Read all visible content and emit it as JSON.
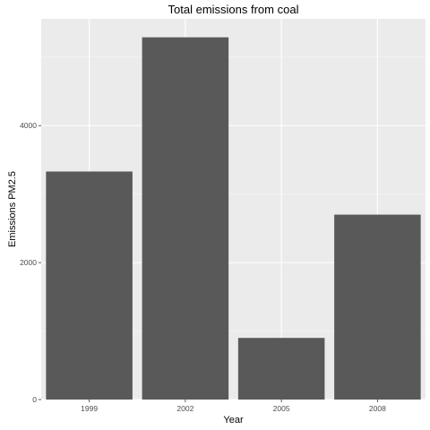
{
  "chart_data": {
    "type": "bar",
    "title": "Total emissions from coal",
    "xlabel": "Year",
    "ylabel": "Emissions PM2.5",
    "categories": [
      "1999",
      "2002",
      "2005",
      "2008"
    ],
    "values": [
      3330,
      5290,
      900,
      2700
    ],
    "ylim": [
      0,
      5560
    ],
    "yticks": [
      0,
      2000,
      4000
    ],
    "ytick_labels": [
      "0",
      "2000",
      "4000"
    ],
    "grid": true,
    "panel_color": "#ebebeb",
    "bar_color": "#595959"
  }
}
